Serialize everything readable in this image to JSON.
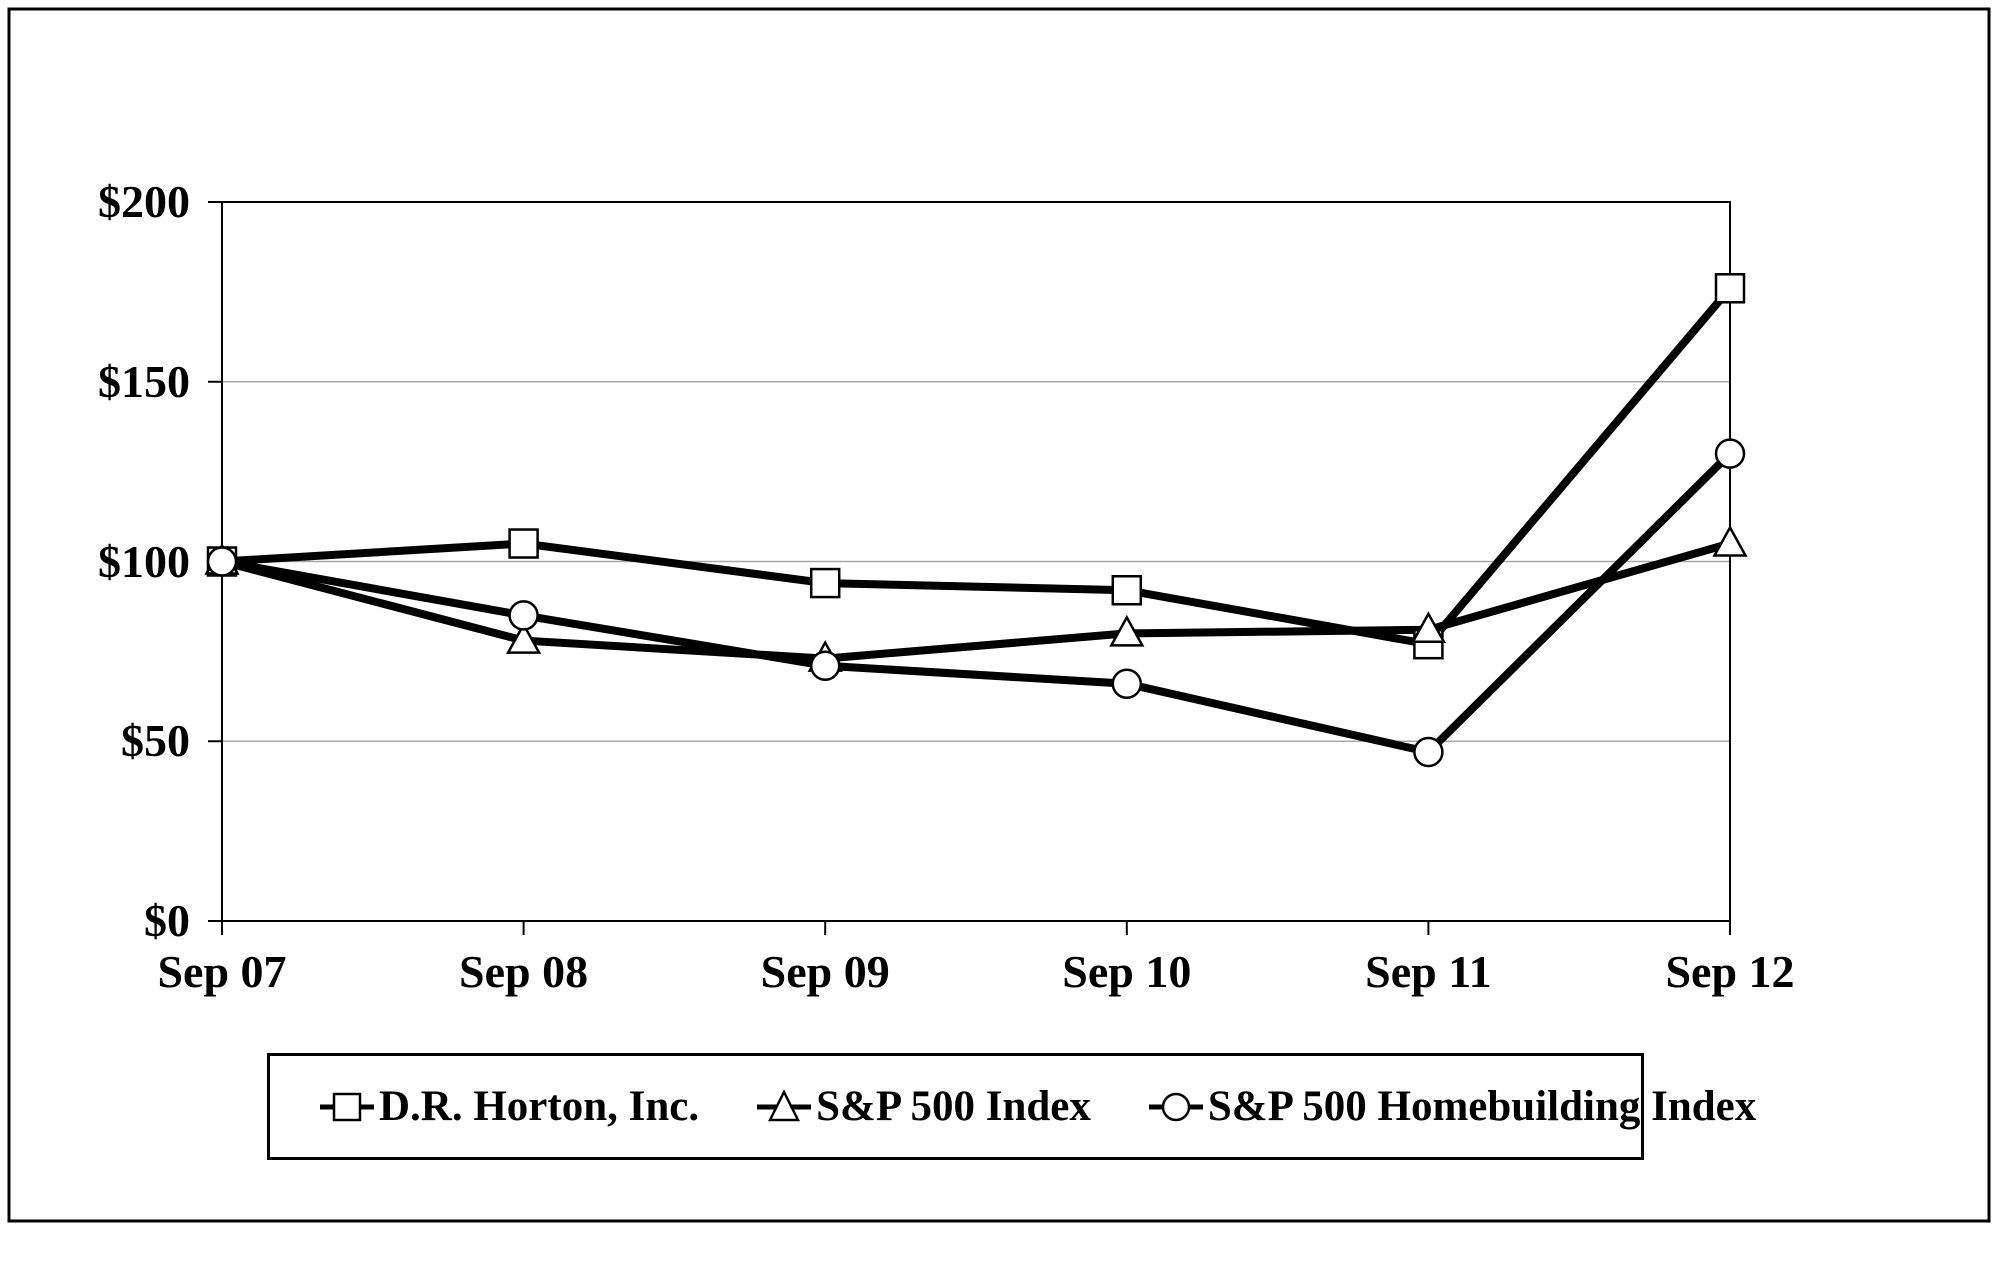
{
  "chart_data": {
    "type": "line",
    "x_categories": [
      "Sep 07",
      "Sep 08",
      "Sep 09",
      "Sep 10",
      "Sep 11",
      "Sep 12"
    ],
    "series": [
      {
        "name": "D.R. Horton, Inc.",
        "marker": "square",
        "values": [
          100,
          105,
          94,
          92,
          77,
          176
        ]
      },
      {
        "name": "S&P 500 Index",
        "marker": "triangle",
        "values": [
          100,
          78,
          73,
          80,
          81,
          105
        ]
      },
      {
        "name": "S&P 500 Homebuilding Index",
        "marker": "circle",
        "values": [
          100,
          85,
          71,
          66,
          47,
          130
        ]
      }
    ],
    "ylim": [
      0,
      200
    ],
    "y_tick_interval": 50,
    "y_tick_labels": [
      "$0",
      "$50",
      "$100",
      "$150",
      "$200"
    ],
    "grid": "horizontal",
    "legend_position": "bottom",
    "line_color": "#000000",
    "grid_color": "#a8a8a8",
    "axis_color": "#000000",
    "marker_fill": "#ffffff",
    "background": "#ffffff"
  }
}
